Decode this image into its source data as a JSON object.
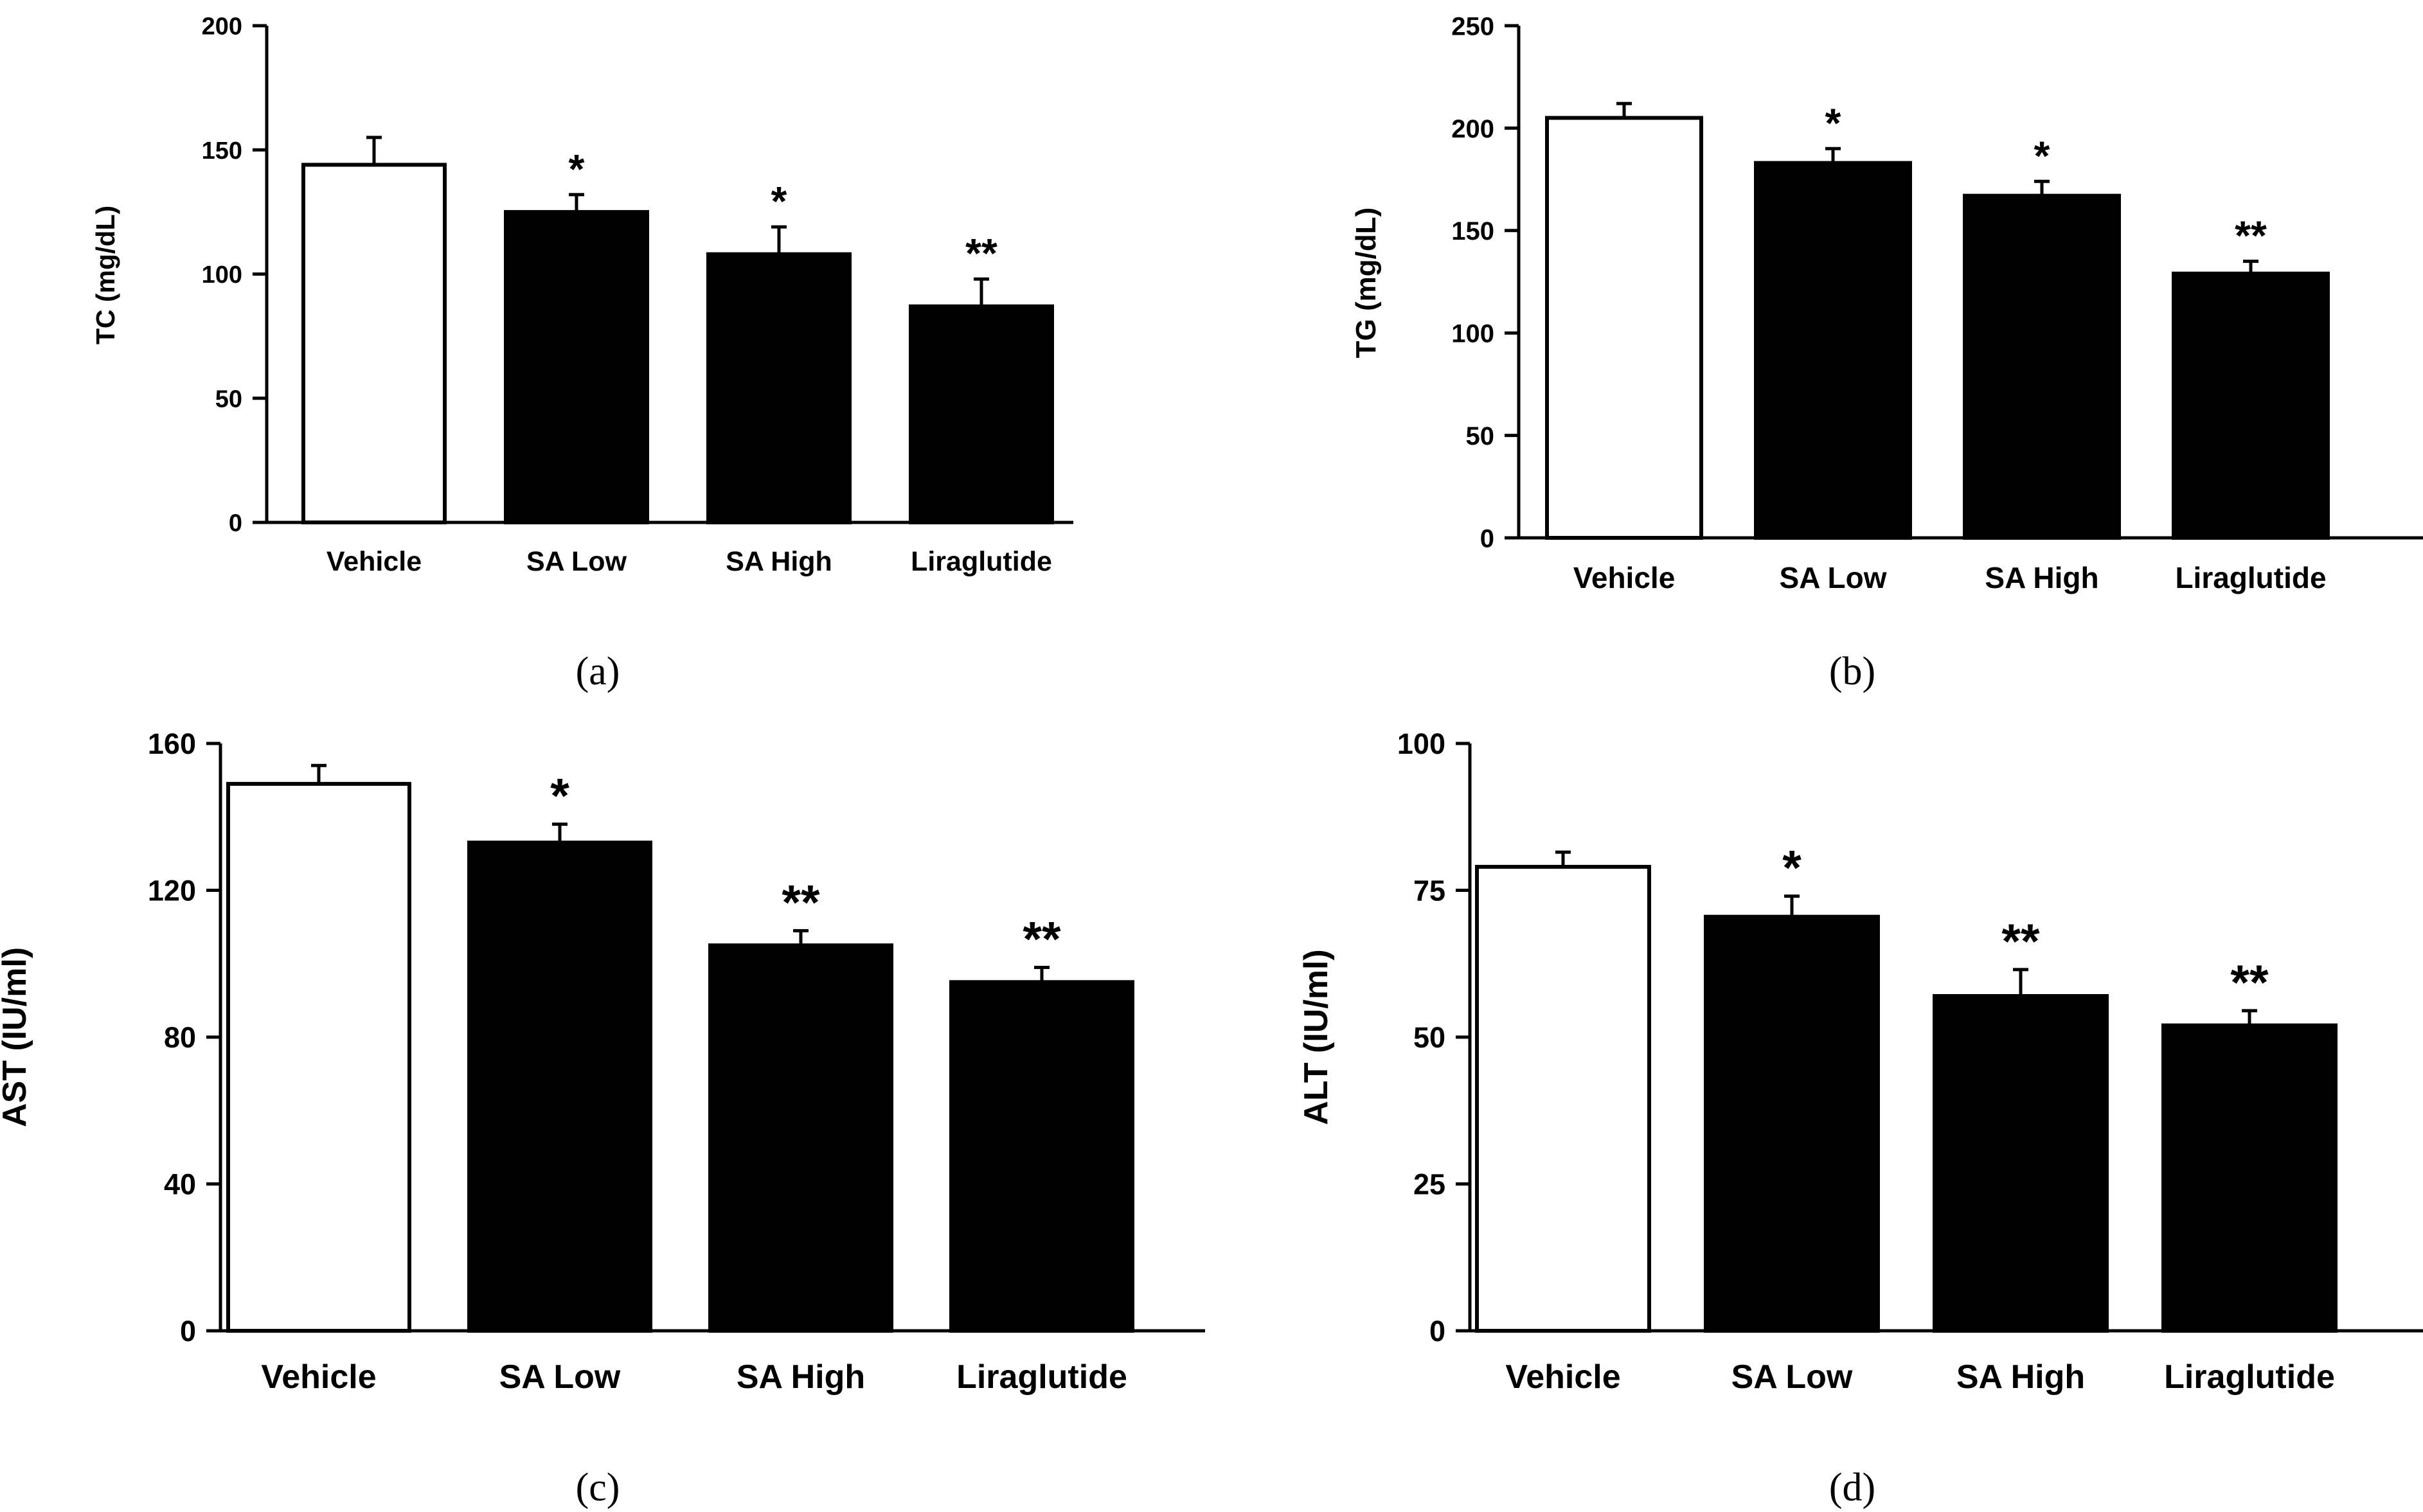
{
  "figure": {
    "colors": {
      "axis": "#000000",
      "control_bar": "#ffffff",
      "treated_bar": "#000000"
    }
  },
  "chart_data": [
    {
      "id": "a",
      "type": "bar",
      "panel_label": "(a)",
      "title": "",
      "xlabel": "",
      "ylabel": "TC (mg/dL)",
      "ylim": [
        0,
        200
      ],
      "yticks": [
        0,
        50,
        100,
        150,
        200
      ],
      "categories": [
        "Vehicle",
        "SA Low",
        "SA High",
        "Liraglutide"
      ],
      "values": [
        144,
        125,
        108,
        87
      ],
      "errors": [
        11,
        7,
        11,
        11
      ],
      "significance": [
        "",
        "*",
        "*",
        "**"
      ],
      "fills": [
        "#ffffff",
        "#000000",
        "#000000",
        "#000000"
      ]
    },
    {
      "id": "b",
      "type": "bar",
      "panel_label": "(b)",
      "title": "",
      "xlabel": "",
      "ylabel": "TG (mg/dL)",
      "ylim": [
        0,
        250
      ],
      "yticks": [
        0,
        50,
        100,
        150,
        200,
        250
      ],
      "categories": [
        "Vehicle",
        "SA Low",
        "SA High",
        "Liraglutide"
      ],
      "values": [
        205,
        183,
        167,
        129
      ],
      "errors": [
        7,
        7,
        7,
        6
      ],
      "significance": [
        "",
        "*",
        "*",
        "**"
      ],
      "fills": [
        "#ffffff",
        "#000000",
        "#000000",
        "#000000"
      ]
    },
    {
      "id": "c",
      "type": "bar",
      "panel_label": "(c)",
      "title": "",
      "xlabel": "",
      "ylabel": "AST (IU/ml)",
      "ylim": [
        0,
        160
      ],
      "yticks": [
        0,
        40,
        80,
        120,
        160
      ],
      "categories": [
        "Vehicle",
        "SA Low",
        "SA High",
        "Liraglutide"
      ],
      "values": [
        149,
        133,
        105,
        95
      ],
      "errors": [
        5,
        5,
        4,
        4
      ],
      "significance": [
        "",
        "*",
        "**",
        "**"
      ],
      "fills": [
        "#ffffff",
        "#000000",
        "#000000",
        "#000000"
      ]
    },
    {
      "id": "d",
      "type": "bar",
      "panel_label": "(d)",
      "title": "",
      "xlabel": "",
      "ylabel": "ALT (IU/ml)",
      "ylim": [
        0,
        100
      ],
      "yticks": [
        0,
        25,
        50,
        75,
        100
      ],
      "categories": [
        "Vehicle",
        "SA Low",
        "SA High",
        "Liraglutide"
      ],
      "values": [
        79,
        70.5,
        57,
        52
      ],
      "errors": [
        2.5,
        3.5,
        4.5,
        2.5
      ],
      "significance": [
        "",
        "*",
        "**",
        "**"
      ],
      "fills": [
        "#ffffff",
        "#000000",
        "#000000",
        "#000000"
      ]
    }
  ]
}
